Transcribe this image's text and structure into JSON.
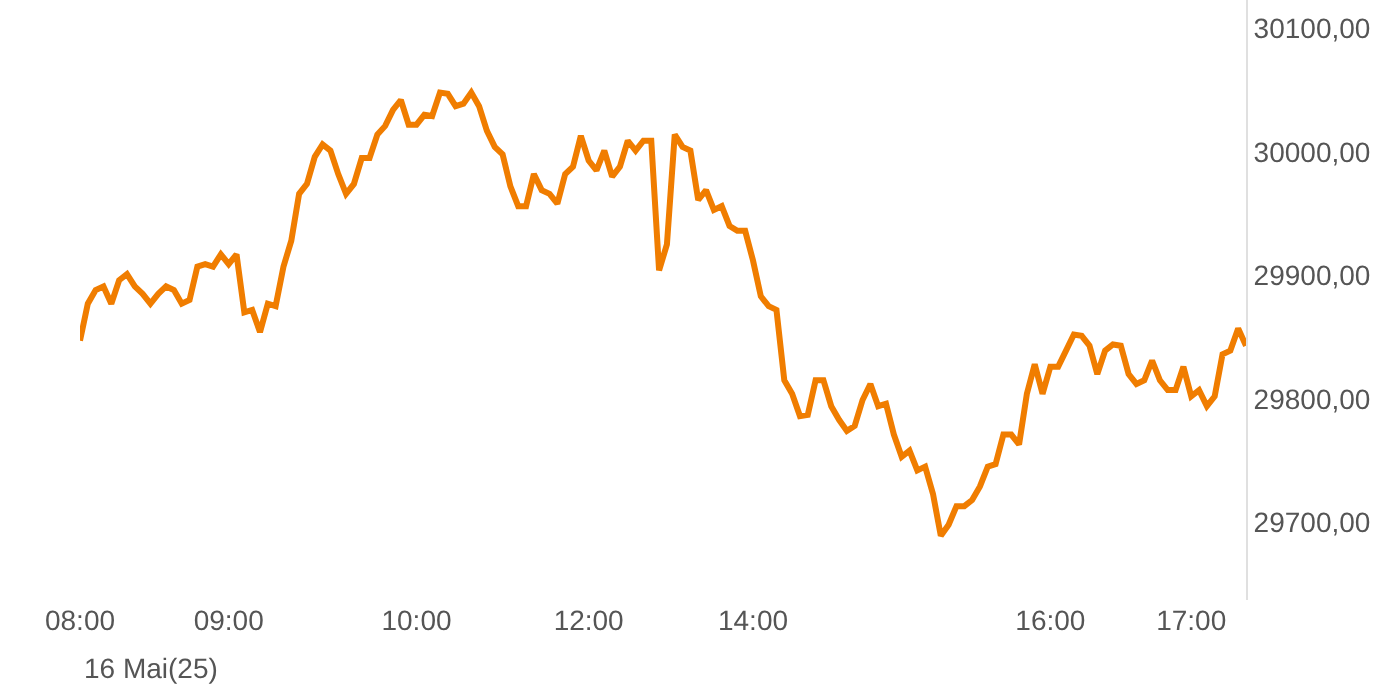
{
  "chart_data": {
    "type": "line",
    "categories": [
      "08:00",
      null,
      null,
      null,
      null,
      null,
      null,
      null,
      null,
      null,
      null,
      null,
      null,
      null,
      null,
      null,
      null,
      null,
      null,
      "09:00",
      null,
      null,
      null,
      null,
      null,
      null,
      null,
      null,
      null,
      null,
      null,
      null,
      null,
      null,
      null,
      null,
      null,
      null,
      null,
      null,
      null,
      null,
      null,
      "10:00",
      null,
      null,
      null,
      null,
      null,
      null,
      null,
      null,
      null,
      null,
      null,
      null,
      null,
      null,
      null,
      null,
      null,
      null,
      null,
      null,
      null,
      "12:00",
      null,
      null,
      null,
      null,
      null,
      null,
      null,
      null,
      null,
      null,
      null,
      null,
      null,
      null,
      null,
      null,
      null,
      null,
      null,
      null,
      "14:00",
      null,
      null,
      null,
      null,
      null,
      null,
      null,
      null,
      null,
      null,
      null,
      null,
      null,
      null,
      null,
      null,
      null,
      null,
      null,
      null,
      null,
      null,
      null,
      null,
      null,
      null,
      null,
      null,
      null,
      null,
      null,
      null,
      null,
      null,
      null,
      null,
      null,
      "16:00",
      null,
      null,
      null,
      null,
      null,
      null,
      null,
      null,
      null,
      null,
      null,
      null,
      null,
      null,
      null,
      null,
      null,
      "17:00",
      null,
      null,
      null,
      null,
      null,
      null,
      null
    ],
    "series": [
      {
        "color": "#f07d00",
        "values": [
          29847,
          29877,
          29888,
          29891,
          29877,
          29896,
          29901,
          29891,
          29885,
          29877,
          29885,
          29891,
          29888,
          29877,
          29880,
          29907,
          29909,
          29907,
          29917,
          29909,
          29917,
          29870,
          29872,
          29854,
          29877,
          29875,
          29907,
          29928,
          29966,
          29974,
          29996,
          30006,
          30001,
          29982,
          29966,
          29974,
          29995,
          29995,
          30014,
          30021,
          30034,
          30042,
          30022,
          30022,
          30030,
          30029,
          30048,
          30047,
          30037,
          30039,
          30048,
          30037,
          30017,
          30004,
          29998,
          29972,
          29956,
          29956,
          29982,
          29969,
          29966,
          29958,
          29982,
          29988,
          30013,
          29993,
          29985,
          30001,
          29980,
          29988,
          30009,
          30001,
          30009,
          30009,
          29904,
          29925,
          30014,
          30004,
          30001,
          29961,
          29969,
          29953,
          29956,
          29940,
          29936,
          29936,
          29912,
          29883,
          29875,
          29872,
          29815,
          29804,
          29786,
          29787,
          29815,
          29815,
          29794,
          29783,
          29774,
          29778,
          29799,
          29812,
          29794,
          29796,
          29771,
          29753,
          29758,
          29742,
          29745,
          29723,
          29689,
          29698,
          29713,
          29713,
          29718,
          29729,
          29745,
          29747,
          29771,
          29771,
          29763,
          29804,
          29828,
          29804,
          29826,
          29826,
          29839,
          29852,
          29851,
          29843,
          29820,
          29839,
          29844,
          29843,
          29820,
          29812,
          29815,
          29831,
          29815,
          29807,
          29807,
          29826,
          29802,
          29807,
          29794,
          29802,
          29836,
          29839,
          29857,
          29843
        ]
      }
    ],
    "ylim": [
      29637,
      30123
    ],
    "yticks": [
      {
        "value": 29700,
        "label": "29700,00"
      },
      {
        "value": 29800,
        "label": "29800,00"
      },
      {
        "value": 29900,
        "label": "29900,00"
      },
      {
        "value": 30000,
        "label": "30000,00"
      },
      {
        "value": 30100,
        "label": "30100,00"
      }
    ],
    "grid": false,
    "legend": false,
    "marker": "none",
    "line_style": "solid",
    "annotations": [
      "16 Mai(25)"
    ]
  }
}
